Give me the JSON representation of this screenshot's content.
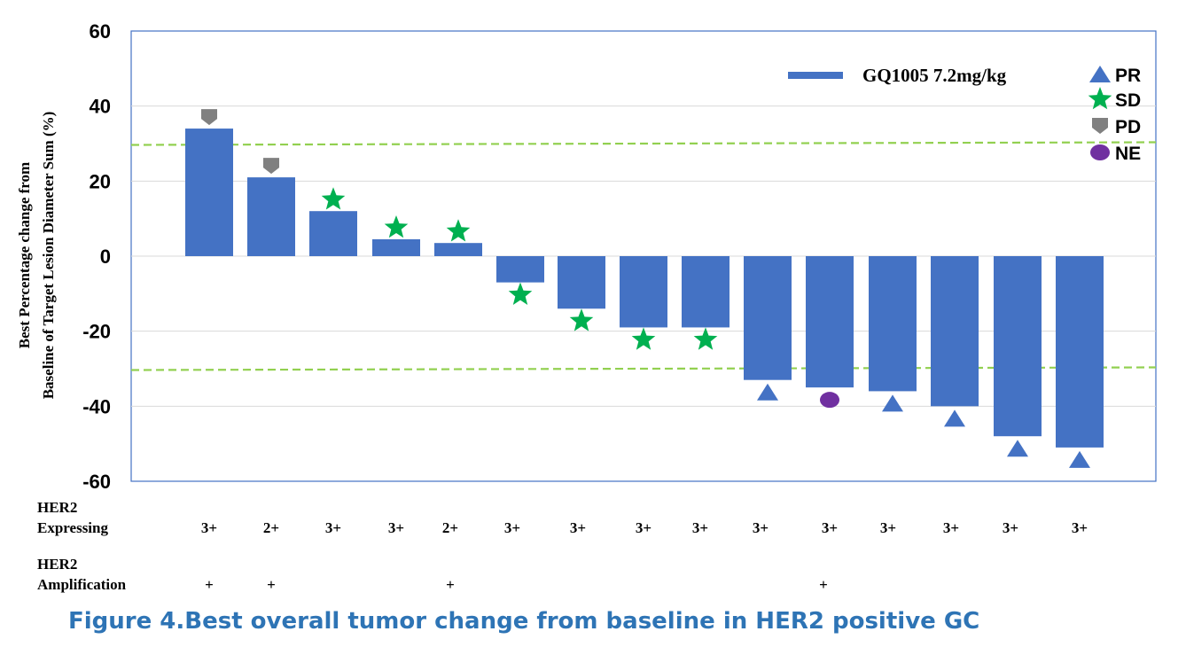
{
  "chart_data": {
    "type": "bar",
    "ylabel_line1": "Best Percentage change from",
    "ylabel_line2": "Baseline of Target Lesion Diameter Sum (%)",
    "ylim": [
      -60,
      60
    ],
    "yticks": [
      "60",
      "40",
      "20",
      "0",
      "-20",
      "-40",
      "-60"
    ],
    "reference_lines": [
      30,
      -30
    ],
    "series_name": "GQ1005 7.2mg/kg",
    "bar_color": "#4472c4",
    "legend_position": "top-right",
    "values": [
      34,
      21,
      12,
      4.5,
      3.5,
      -7,
      -14,
      -19,
      -19,
      -33,
      -35,
      -36,
      -40,
      -48,
      -51
    ],
    "responses": [
      "PD",
      "PD",
      "SD",
      "SD",
      "SD",
      "SD",
      "SD",
      "SD",
      "SD",
      "PR",
      "NE",
      "PR",
      "PR",
      "PR",
      "PR"
    ],
    "her2_expressing": [
      "3+",
      "2+",
      "3+",
      "3+",
      "2+",
      "3+",
      "3+",
      "3+",
      "3+",
      "3+",
      "3+",
      "3+",
      "3+",
      "3+",
      "3+"
    ],
    "her2_amplification": [
      "+",
      "+",
      "",
      "",
      "+",
      "",
      "",
      "",
      "",
      "",
      "+",
      "",
      "",
      "",
      ""
    ],
    "response_legend": [
      {
        "label": "PR",
        "shape": "triangle",
        "color": "#4472c4"
      },
      {
        "label": "SD",
        "shape": "star",
        "color": "#00b050"
      },
      {
        "label": "PD",
        "shape": "pentagon-down",
        "color": "#808080"
      },
      {
        "label": "NE",
        "shape": "ellipse",
        "color": "#7030a0"
      }
    ]
  },
  "rows": {
    "expressing_label_1": "HER2",
    "expressing_label_2": "Expressing",
    "amplification_label_1": "HER2",
    "amplification_label_2": "Amplification"
  },
  "caption": "Figure 4.Best overall tumor change from baseline in HER2 positive GC"
}
